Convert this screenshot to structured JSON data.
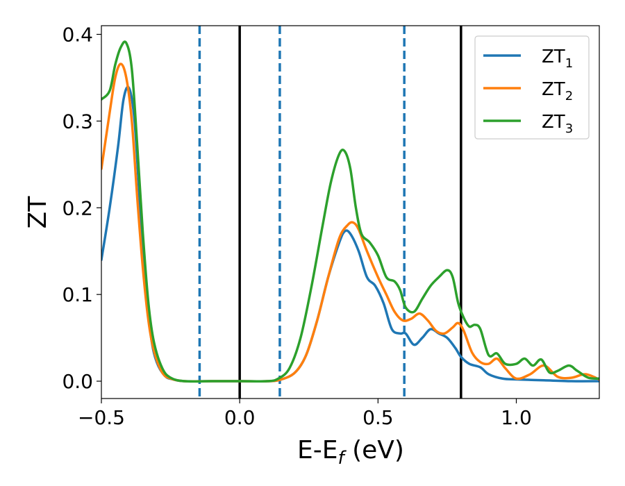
{
  "chart_data": {
    "type": "line",
    "title": "",
    "xlabel_main": "E-E",
    "xlabel_sub": "f",
    "xlabel_tail": " (eV)",
    "ylabel": "ZT",
    "xlim": [
      -0.5,
      1.3
    ],
    "ylim": [
      -0.02,
      0.41
    ],
    "xticks": [
      -0.5,
      0.0,
      0.5,
      1.0
    ],
    "xtick_labels": [
      "−0.5",
      "0.0",
      "0.5",
      "1.0"
    ],
    "yticks": [
      0.0,
      0.1,
      0.2,
      0.3,
      0.4
    ],
    "ytick_labels": [
      "0.0",
      "0.1",
      "0.2",
      "0.3",
      "0.4"
    ],
    "grid": false,
    "legend_position": "top-right",
    "vlines_solid": [
      0.0,
      0.8
    ],
    "vlines_dashed": [
      -0.145,
      0.145,
      0.595
    ],
    "colors": {
      "zt1": "#1f77b4",
      "zt2": "#ff7f0e",
      "zt3": "#2ca02c",
      "dashed": "#1f77b4",
      "solid": "#000000"
    },
    "series": [
      {
        "name": "ZT",
        "subscript": "1",
        "color": "#1f77b4",
        "points": [
          [
            -0.5,
            0.14
          ],
          [
            -0.47,
            0.2
          ],
          [
            -0.44,
            0.27
          ],
          [
            -0.42,
            0.325
          ],
          [
            -0.4,
            0.338
          ],
          [
            -0.38,
            0.3
          ],
          [
            -0.36,
            0.2
          ],
          [
            -0.34,
            0.11
          ],
          [
            -0.32,
            0.05
          ],
          [
            -0.3,
            0.022
          ],
          [
            -0.27,
            0.006
          ],
          [
            -0.24,
            0.002
          ],
          [
            -0.2,
            0.0
          ],
          [
            -0.1,
            0.0
          ],
          [
            0.0,
            0.0
          ],
          [
            0.1,
            0.0
          ],
          [
            0.15,
            0.002
          ],
          [
            0.2,
            0.01
          ],
          [
            0.24,
            0.03
          ],
          [
            0.28,
            0.07
          ],
          [
            0.32,
            0.12
          ],
          [
            0.36,
            0.16
          ],
          [
            0.38,
            0.173
          ],
          [
            0.4,
            0.17
          ],
          [
            0.43,
            0.15
          ],
          [
            0.46,
            0.12
          ],
          [
            0.49,
            0.11
          ],
          [
            0.52,
            0.09
          ],
          [
            0.55,
            0.06
          ],
          [
            0.58,
            0.055
          ],
          [
            0.6,
            0.055
          ],
          [
            0.63,
            0.042
          ],
          [
            0.66,
            0.05
          ],
          [
            0.69,
            0.06
          ],
          [
            0.72,
            0.055
          ],
          [
            0.75,
            0.05
          ],
          [
            0.78,
            0.038
          ],
          [
            0.8,
            0.028
          ],
          [
            0.83,
            0.02
          ],
          [
            0.87,
            0.016
          ],
          [
            0.9,
            0.008
          ],
          [
            0.95,
            0.003
          ],
          [
            1.0,
            0.002
          ],
          [
            1.1,
            0.001
          ],
          [
            1.2,
            0.0
          ],
          [
            1.3,
            0.0
          ]
        ]
      },
      {
        "name": "ZT",
        "subscript": "2",
        "color": "#ff7f0e",
        "points": [
          [
            -0.5,
            0.245
          ],
          [
            -0.47,
            0.31
          ],
          [
            -0.45,
            0.35
          ],
          [
            -0.43,
            0.366
          ],
          [
            -0.41,
            0.35
          ],
          [
            -0.39,
            0.3
          ],
          [
            -0.37,
            0.21
          ],
          [
            -0.35,
            0.13
          ],
          [
            -0.33,
            0.07
          ],
          [
            -0.31,
            0.035
          ],
          [
            -0.28,
            0.01
          ],
          [
            -0.25,
            0.003
          ],
          [
            -0.2,
            0.0
          ],
          [
            -0.1,
            0.0
          ],
          [
            0.0,
            0.0
          ],
          [
            0.1,
            0.0
          ],
          [
            0.15,
            0.002
          ],
          [
            0.2,
            0.01
          ],
          [
            0.24,
            0.03
          ],
          [
            0.28,
            0.07
          ],
          [
            0.32,
            0.12
          ],
          [
            0.36,
            0.165
          ],
          [
            0.39,
            0.18
          ],
          [
            0.41,
            0.183
          ],
          [
            0.43,
            0.175
          ],
          [
            0.46,
            0.15
          ],
          [
            0.5,
            0.12
          ],
          [
            0.53,
            0.1
          ],
          [
            0.56,
            0.08
          ],
          [
            0.59,
            0.07
          ],
          [
            0.62,
            0.072
          ],
          [
            0.65,
            0.078
          ],
          [
            0.68,
            0.07
          ],
          [
            0.71,
            0.058
          ],
          [
            0.74,
            0.055
          ],
          [
            0.77,
            0.062
          ],
          [
            0.79,
            0.067
          ],
          [
            0.81,
            0.058
          ],
          [
            0.84,
            0.033
          ],
          [
            0.87,
            0.022
          ],
          [
            0.9,
            0.02
          ],
          [
            0.93,
            0.026
          ],
          [
            0.96,
            0.015
          ],
          [
            1.0,
            0.003
          ],
          [
            1.05,
            0.008
          ],
          [
            1.1,
            0.018
          ],
          [
            1.15,
            0.005
          ],
          [
            1.2,
            0.004
          ],
          [
            1.25,
            0.008
          ],
          [
            1.3,
            0.002
          ]
        ]
      },
      {
        "name": "ZT",
        "subscript": "3",
        "color": "#2ca02c",
        "points": [
          [
            -0.5,
            0.325
          ],
          [
            -0.47,
            0.335
          ],
          [
            -0.45,
            0.365
          ],
          [
            -0.43,
            0.385
          ],
          [
            -0.41,
            0.39
          ],
          [
            -0.39,
            0.36
          ],
          [
            -0.37,
            0.27
          ],
          [
            -0.35,
            0.17
          ],
          [
            -0.33,
            0.09
          ],
          [
            -0.31,
            0.045
          ],
          [
            -0.28,
            0.015
          ],
          [
            -0.25,
            0.004
          ],
          [
            -0.2,
            0.0
          ],
          [
            -0.1,
            0.0
          ],
          [
            0.0,
            0.0
          ],
          [
            0.1,
            0.0
          ],
          [
            0.14,
            0.003
          ],
          [
            0.18,
            0.015
          ],
          [
            0.22,
            0.05
          ],
          [
            0.26,
            0.11
          ],
          [
            0.3,
            0.18
          ],
          [
            0.33,
            0.23
          ],
          [
            0.36,
            0.262
          ],
          [
            0.38,
            0.265
          ],
          [
            0.4,
            0.245
          ],
          [
            0.42,
            0.2
          ],
          [
            0.44,
            0.17
          ],
          [
            0.47,
            0.16
          ],
          [
            0.5,
            0.145
          ],
          [
            0.53,
            0.12
          ],
          [
            0.56,
            0.115
          ],
          [
            0.58,
            0.105
          ],
          [
            0.6,
            0.085
          ],
          [
            0.63,
            0.08
          ],
          [
            0.66,
            0.095
          ],
          [
            0.69,
            0.11
          ],
          [
            0.72,
            0.12
          ],
          [
            0.75,
            0.128
          ],
          [
            0.77,
            0.12
          ],
          [
            0.79,
            0.09
          ],
          [
            0.81,
            0.073
          ],
          [
            0.83,
            0.063
          ],
          [
            0.85,
            0.065
          ],
          [
            0.87,
            0.06
          ],
          [
            0.9,
            0.03
          ],
          [
            0.93,
            0.032
          ],
          [
            0.96,
            0.02
          ],
          [
            1.0,
            0.02
          ],
          [
            1.03,
            0.026
          ],
          [
            1.06,
            0.018
          ],
          [
            1.09,
            0.025
          ],
          [
            1.12,
            0.01
          ],
          [
            1.15,
            0.012
          ],
          [
            1.19,
            0.018
          ],
          [
            1.22,
            0.012
          ],
          [
            1.26,
            0.004
          ],
          [
            1.3,
            0.003
          ]
        ]
      }
    ]
  }
}
